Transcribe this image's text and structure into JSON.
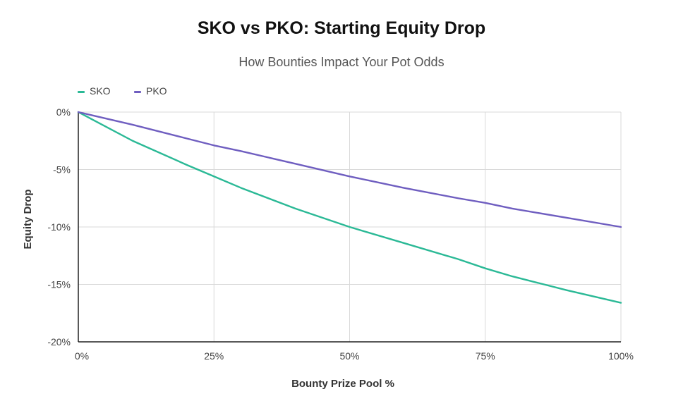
{
  "chart_data": {
    "type": "line",
    "title": "SKO vs PKO: Starting Equity Drop",
    "subtitle": "How Bounties Impact Your Pot Odds",
    "xlabel": "Bounty Prize Pool %",
    "ylabel": "Equity Drop",
    "x_ticks": [
      "0%",
      "25%",
      "50%",
      "75%",
      "100%"
    ],
    "y_ticks": [
      "0%",
      "-5%",
      "-10%",
      "-15%",
      "-20%"
    ],
    "xlim": [
      0,
      100
    ],
    "ylim": [
      -20,
      0
    ],
    "grid": true,
    "legend_position": "top-left",
    "x": [
      0,
      10,
      20,
      25,
      30,
      40,
      50,
      60,
      70,
      75,
      80,
      90,
      100
    ],
    "series": [
      {
        "name": "SKO",
        "color": "#2bb996",
        "values": [
          0,
          -2.5,
          -4.6,
          -5.6,
          -6.6,
          -8.4,
          -10.0,
          -11.4,
          -12.8,
          -13.6,
          -14.3,
          -15.5,
          -16.6
        ]
      },
      {
        "name": "PKO",
        "color": "#6f5ec0",
        "values": [
          0,
          -1.1,
          -2.3,
          -2.9,
          -3.4,
          -4.5,
          -5.6,
          -6.6,
          -7.5,
          -7.9,
          -8.4,
          -9.2,
          -10.0
        ]
      }
    ]
  }
}
